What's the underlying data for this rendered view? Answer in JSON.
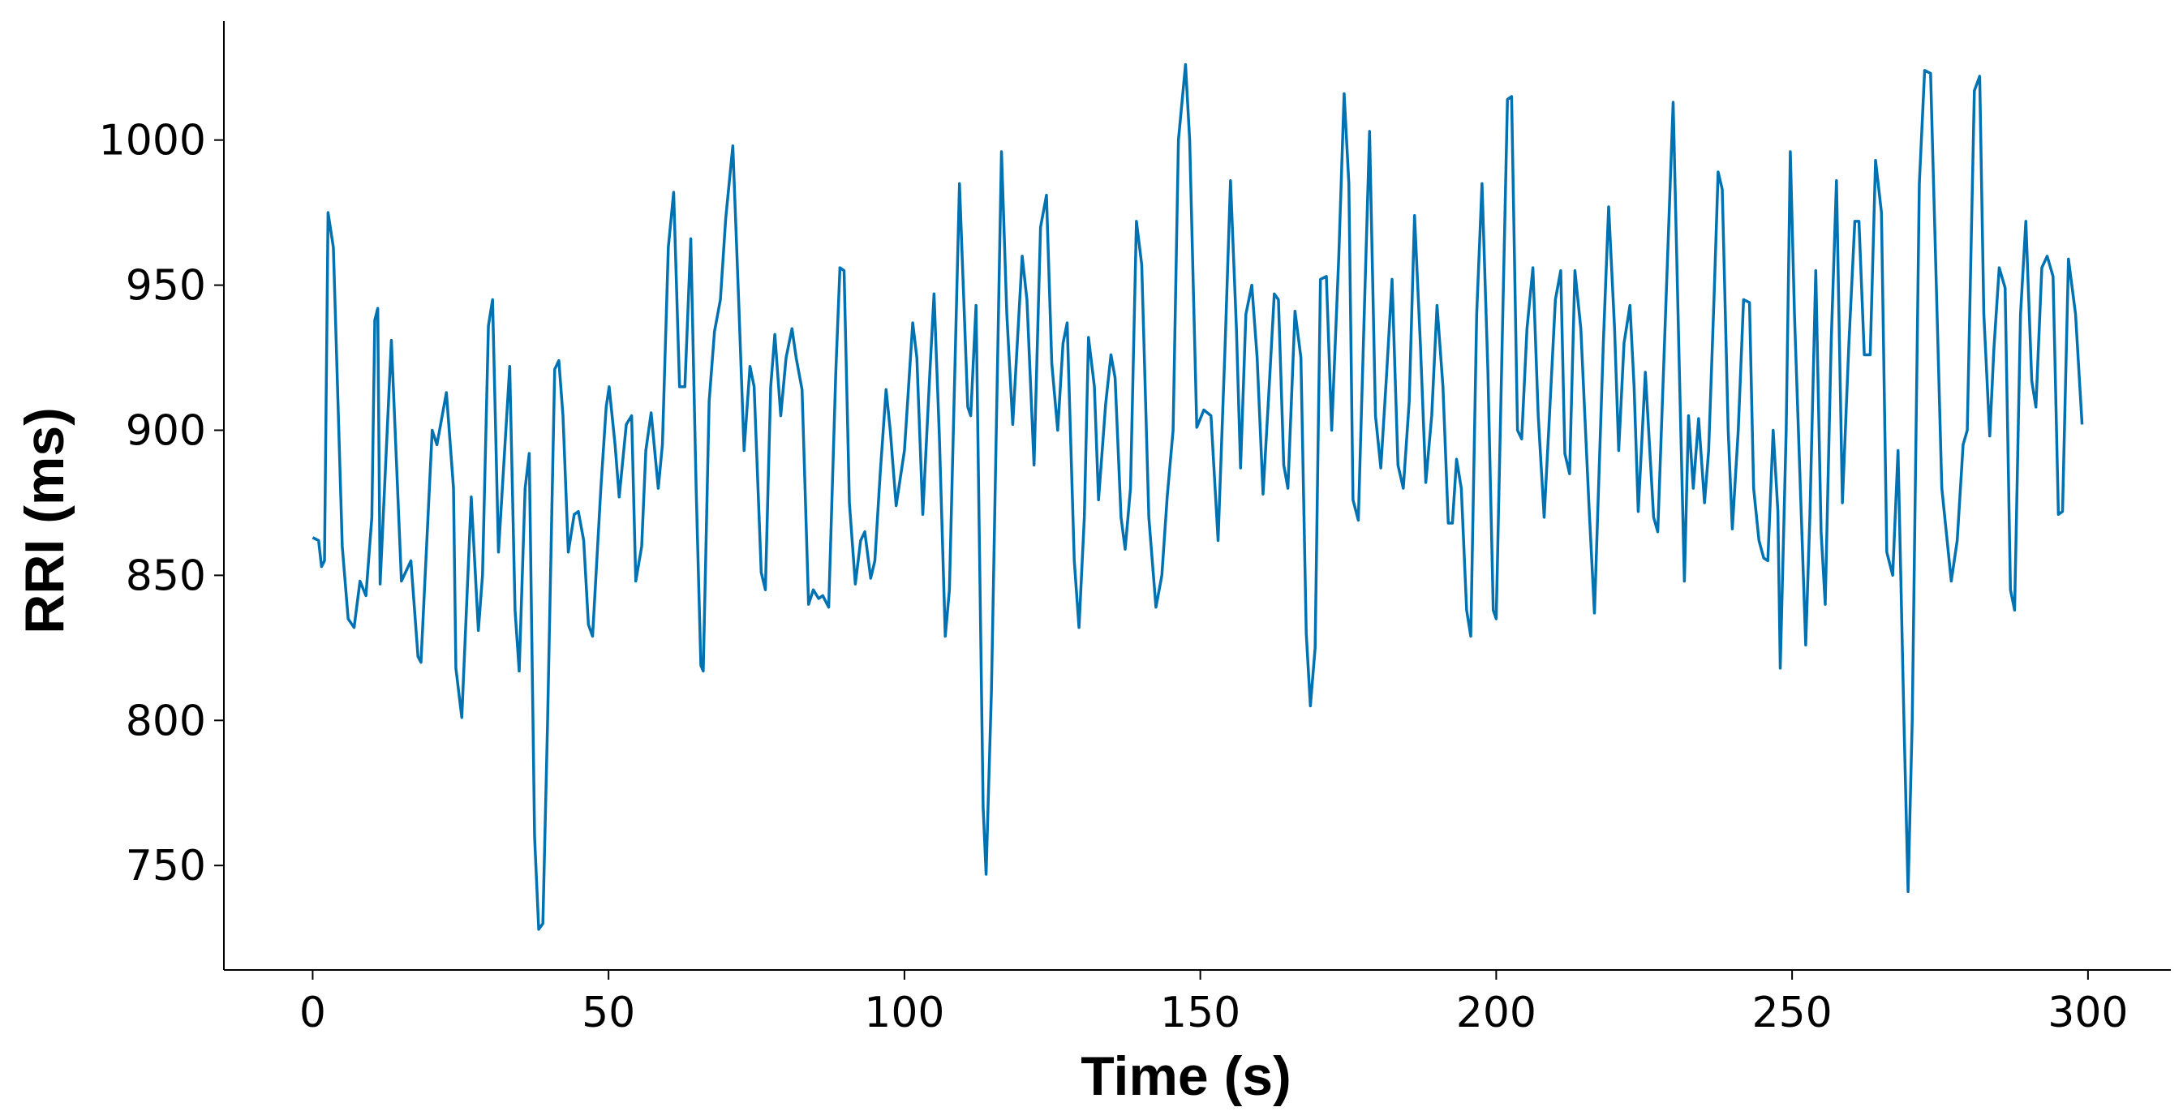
{
  "chart_data": {
    "type": "line",
    "xlabel": "Time (s)",
    "ylabel": "RRI (ms)",
    "color": "#0072b2",
    "xlim": [
      -15,
      314
    ],
    "ylim": [
      714,
      1041
    ],
    "xticks": [
      0,
      50,
      100,
      150,
      200,
      250,
      300
    ],
    "yticks": [
      750,
      800,
      850,
      900,
      950,
      1000
    ],
    "grid": false,
    "x": [
      0,
      1,
      1.5,
      2,
      2.6,
      3.5,
      5,
      6,
      7,
      8,
      9,
      10,
      10.5,
      11,
      11.4,
      13.3,
      15,
      16.6,
      17.8,
      18.3,
      20.2,
      21,
      22.6,
      23.8,
      24.2,
      25.2,
      26.8,
      28,
      28.7,
      29.7,
      30.4,
      31.4,
      33.3,
      34.2,
      34.9,
      35.9,
      36.6,
      37.5,
      38.2,
      38.9,
      39.7,
      40.9,
      41.6,
      42.3,
      43.2,
      44.2,
      44.9,
      45.8,
      46.6,
      47.3,
      48.7,
      49.6,
      50.1,
      51.1,
      51.8,
      53,
      53.9,
      54.6,
      55.6,
      56.3,
      57.2,
      58.4,
      59.1,
      60.1,
      61,
      62,
      62.9,
      63.9,
      64.8,
      65.6,
      66,
      67,
      67.9,
      68.9,
      69.8,
      71,
      72,
      72.9,
      73.9,
      74.6,
      75.8,
      76.5,
      77.4,
      78.1,
      79.1,
      80,
      81,
      81.7,
      82.7,
      83.8,
      84.6,
      85.5,
      86.2,
      87.2,
      88.4,
      89.1,
      89.8,
      90.7,
      91.7,
      92.6,
      93.3,
      94.3,
      95,
      95.9,
      96.9,
      97.6,
      98.6,
      100,
      101.4,
      102.1,
      103.1,
      104.3,
      105,
      105.9,
      106.9,
      107.6,
      109.3,
      110.7,
      111.2,
      112.1,
      113.3,
      113.8,
      114.7,
      116.4,
      117.3,
      118.3,
      119.9,
      120.7,
      121.9,
      123,
      124,
      124.9,
      125.9,
      126.8,
      127.5,
      128.7,
      129.5,
      130.4,
      131.1,
      132.1,
      132.8,
      134,
      134.9,
      135.6,
      136.6,
      137.3,
      138.2,
      139.2,
      140.1,
      141.3,
      142.5,
      143.5,
      144.4,
      145.4,
      146.3,
      147.5,
      148.2,
      149.4,
      150.6,
      151.8,
      153,
      154.2,
      155.1,
      156.1,
      156.8,
      157.7,
      158.7,
      159.6,
      160.6,
      161.5,
      162.5,
      163.2,
      164.1,
      164.8,
      166,
      167,
      167.9,
      168.6,
      169.4,
      170.3,
      171.3,
      172.2,
      173.4,
      174.3,
      175.1,
      175.8,
      176.7,
      177.7,
      178.6,
      179.6,
      180.5,
      181.5,
      182.4,
      183.4,
      184.3,
      185.3,
      186.2,
      187.2,
      188.1,
      189.1,
      190,
      191,
      191.9,
      192.6,
      193.3,
      194.1,
      195,
      195.7,
      196.7,
      197.6,
      198.6,
      199.5,
      200,
      200.9,
      201.9,
      202.6,
      203.6,
      204.3,
      205.2,
      206.2,
      207.1,
      208.1,
      209,
      210,
      210.9,
      211.6,
      212.4,
      213.3,
      214.3,
      215.7,
      216.6,
      218.1,
      219,
      220,
      220.7,
      221.6,
      222.6,
      223.3,
      224,
      225.2,
      226.6,
      227.3,
      228.7,
      229.9,
      230.9,
      231.8,
      232.5,
      233.3,
      234.2,
      235.2,
      235.9,
      236.8,
      237.5,
      238.2,
      239.2,
      239.9,
      240.9,
      241.8,
      242.8,
      243.5,
      244.4,
      245.2,
      245.9,
      246.8,
      247.6,
      248,
      249,
      249.7,
      250.4,
      251.4,
      252.3,
      253,
      254,
      254.9,
      255.6,
      256.6,
      257.5,
      258.5,
      259.6,
      260.6,
      261.3,
      262.2,
      263.2,
      264.1,
      265.1,
      266,
      267,
      267.9,
      268.9,
      269.6,
      270.3,
      271.5,
      272.4,
      273.4,
      275.3,
      276.9,
      277.9,
      278.9,
      279.6,
      280.8,
      281.7,
      282.4,
      283.4,
      284.1,
      285,
      286,
      286.9,
      287.6,
      288.6,
      289.5,
      290.5,
      291.2,
      292.2,
      293.1,
      294.1,
      295,
      295.7,
      296.7,
      297.9,
      299
    ],
    "values": [
      863,
      862,
      853,
      855,
      975,
      963,
      860,
      835,
      832,
      848,
      843,
      870,
      938,
      942,
      847,
      931,
      848,
      855,
      822,
      820,
      900,
      895,
      913,
      880,
      818,
      801,
      877,
      831,
      850,
      936,
      945,
      858,
      922,
      838,
      817,
      880,
      892,
      760,
      728,
      730,
      800,
      921,
      924,
      905,
      858,
      871,
      872,
      862,
      833,
      829,
      880,
      908,
      915,
      895,
      877,
      902,
      905,
      848,
      860,
      893,
      906,
      880,
      895,
      963,
      982,
      915,
      915,
      966,
      880,
      819,
      817,
      910,
      934,
      945,
      973,
      998,
      944,
      893,
      922,
      915,
      851,
      845,
      915,
      933,
      905,
      925,
      935,
      925,
      914,
      840,
      845,
      842,
      843,
      839,
      920,
      956,
      955,
      875,
      847,
      862,
      865,
      849,
      855,
      885,
      914,
      900,
      874,
      893,
      937,
      925,
      871,
      920,
      947,
      898,
      829,
      845,
      985,
      908,
      905,
      943,
      770,
      747,
      810,
      996,
      940,
      902,
      960,
      945,
      888,
      970,
      981,
      923,
      900,
      930,
      937,
      855,
      832,
      870,
      932,
      915,
      876,
      909,
      926,
      918,
      870,
      859,
      880,
      972,
      957,
      870,
      839,
      850,
      877,
      900,
      1000,
      1026,
      1000,
      901,
      907,
      905,
      862,
      930,
      986,
      935,
      887,
      940,
      950,
      925,
      878,
      910,
      947,
      945,
      888,
      880,
      941,
      925,
      830,
      805,
      825,
      952,
      953,
      900,
      960,
      1016,
      985,
      876,
      869,
      940,
      1003,
      905,
      887,
      920,
      952,
      888,
      880,
      910,
      974,
      929,
      882,
      905,
      943,
      915,
      868,
      868,
      890,
      880,
      838,
      829,
      940,
      985,
      920,
      838,
      835,
      920,
      1014,
      1015,
      900,
      897,
      935,
      956,
      905,
      870,
      905,
      945,
      955,
      892,
      885,
      955,
      935,
      873,
      837,
      930,
      977,
      935,
      893,
      930,
      943,
      915,
      872,
      920,
      870,
      865,
      945,
      1013,
      925,
      848,
      905,
      880,
      904,
      875,
      893,
      945,
      989,
      983,
      900,
      866,
      900,
      945,
      944,
      880,
      862,
      856,
      855,
      900,
      872,
      818,
      900,
      996,
      940,
      880,
      826,
      870,
      955,
      865,
      840,
      930,
      986,
      875,
      930,
      972,
      972,
      926,
      926,
      993,
      975,
      858,
      850,
      893,
      800,
      741,
      800,
      985,
      1024,
      1023,
      880,
      848,
      862,
      895,
      900,
      1017,
      1022,
      940,
      898,
      928,
      956,
      949,
      845,
      838,
      940,
      972,
      917,
      908,
      956,
      960,
      953,
      871,
      872,
      959,
      940,
      902
    ]
  }
}
